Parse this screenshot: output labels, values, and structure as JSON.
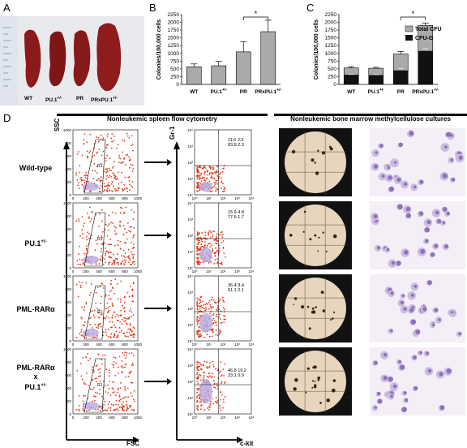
{
  "panels": {
    "A": "A",
    "B": "B",
    "C": "C",
    "D": "D"
  },
  "panelA": {
    "labels": [
      "WT",
      "PU.1",
      "PR",
      "PRxPU.1"
    ],
    "sup": [
      "",
      "+/-",
      "",
      "+/-"
    ]
  },
  "chart_data": [
    {
      "type": "bar",
      "panel": "B",
      "categories": [
        "WT",
        "PU.1+/-",
        "PR",
        "PRxPU.1+/-"
      ],
      "values": [
        570,
        600,
        1050,
        1700
      ],
      "errors": [
        90,
        140,
        330,
        370
      ],
      "ylabel": "Colonies/100,000 cells",
      "ylim": [
        0,
        2250
      ],
      "yticks": [
        0,
        250,
        500,
        750,
        1000,
        1250,
        1500,
        1750,
        2000,
        2250
      ],
      "annotation": "*"
    },
    {
      "type": "bar",
      "panel": "C",
      "categories": [
        "WT",
        "PU.1+/-",
        "PR",
        "PRxPU.1+/-"
      ],
      "series": [
        {
          "name": "Total CFU",
          "values": [
            530,
            520,
            980,
            1900
          ],
          "errors": [
            40,
            30,
            80,
            80
          ]
        },
        {
          "name": "CFU-G",
          "values": [
            310,
            300,
            450,
            1080
          ],
          "errors": [
            20,
            20,
            60,
            70
          ]
        }
      ],
      "ylabel": "Colonies/100,000 cells",
      "ylim": [
        0,
        2250
      ],
      "yticks": [
        0,
        250,
        500,
        750,
        1000,
        1250,
        1500,
        1750,
        2000,
        2250
      ],
      "annotation": "*"
    }
  ],
  "panelD": {
    "header_flow": "Nonleukemic spleen flow cytometry",
    "header_culture": "Nonleukemic bone marrow methylcellulose cultures",
    "rows": [
      {
        "label": "Wild-type",
        "sup": "",
        "q": [
          "11.6",
          "2.3",
          "83.8",
          "2.3"
        ]
      },
      {
        "label": "PU.1",
        "sup": "+/-",
        "q": [
          "15.9",
          "4.8",
          "77.6",
          "1.7"
        ]
      },
      {
        "label": "PML-RARα",
        "sup": "",
        "q": [
          "36.4",
          "8.4",
          "51.1",
          "2.1"
        ]
      },
      {
        "label": "PML-RARα\nx\nPU.1",
        "sup": "+/-",
        "q": [
          "46.8",
          "19.2",
          "33.1",
          "0.9"
        ]
      }
    ],
    "axis_ssc": "SSC",
    "axis_fsc": "FSC",
    "axis_gr1": "Gr-1",
    "axis_ckit": "c-kit",
    "gate": "R1",
    "ticks_lin": [
      "0",
      "200",
      "400",
      "600",
      "800",
      "1000"
    ],
    "ticks_log": [
      "10⁰",
      "10¹",
      "10²",
      "10³",
      "10⁴"
    ]
  },
  "colors": {
    "gray": "#aaaaaa",
    "black": "#111111",
    "spleen": "#8b1a1a",
    "dots": "#e23a1a",
    "stain": "#8e6fb8"
  }
}
